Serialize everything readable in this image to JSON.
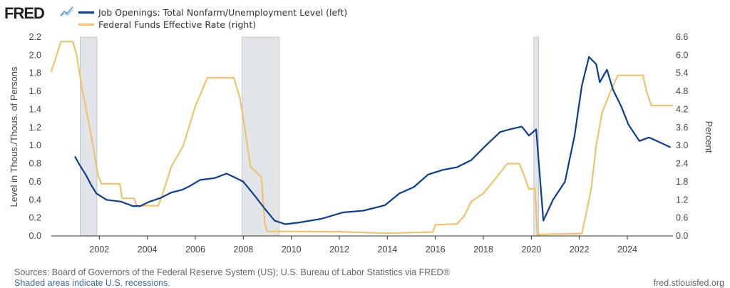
{
  "header": {
    "logo": "FRED",
    "logo_icon": "line-chart-icon"
  },
  "colors": {
    "job_openings": "#0b3d91",
    "fed_funds": "#efc36b",
    "recession": "#e1e5ea"
  },
  "footer": {
    "sources": "Sources: Board of Governors of the Federal Reserve System (US); U.S. Bureau of Labor Statistics via FRED®",
    "recessions_note": "Shaded areas indicate U.S. recessions.",
    "site": "fred.stlouisfed.org"
  },
  "chart_data": {
    "type": "line",
    "xlim": [
      2000.0,
      2025.9
    ],
    "x_ticks": [
      "2002",
      "2004",
      "2006",
      "2008",
      "2010",
      "2012",
      "2014",
      "2016",
      "2018",
      "2020",
      "2022",
      "2024"
    ],
    "ylabel_left": "Level in Thous./Thous. of Persons",
    "ylabel_right": "Percent",
    "ylim_left": [
      0,
      2.2
    ],
    "ylim_right": [
      0,
      6.6
    ],
    "y_ticks_left": [
      "0.0",
      "0.2",
      "0.4",
      "0.6",
      "0.8",
      "1.0",
      "1.2",
      "1.4",
      "1.6",
      "1.8",
      "2.0",
      "2.2"
    ],
    "y_ticks_right": [
      "0.0",
      "0.6",
      "1.2",
      "1.8",
      "2.4",
      "3.0",
      "3.6",
      "4.2",
      "4.8",
      "5.4",
      "6.0",
      "6.6"
    ],
    "recessions": [
      [
        2001.2,
        2001.9
      ],
      [
        2007.95,
        2009.5
      ],
      [
        2020.1,
        2020.3
      ]
    ],
    "series": [
      {
        "name": "Job Openings: Total Nonfarm/Unemployment Level (left)",
        "axis": "left",
        "x": [
          2000.98,
          2001.19,
          2001.43,
          2001.67,
          2001.88,
          2002.3,
          2002.9,
          2003.4,
          2003.7,
          2004.1,
          2004.55,
          2005.0,
          2005.45,
          2005.75,
          2006.2,
          2006.8,
          2007.3,
          2007.7,
          2008.0,
          2008.4,
          2008.9,
          2009.3,
          2009.75,
          2010.35,
          2011.25,
          2012.15,
          2013.0,
          2013.9,
          2014.5,
          2015.1,
          2015.7,
          2016.3,
          2016.9,
          2017.5,
          2018.1,
          2018.7,
          2019.1,
          2019.6,
          2019.9,
          2020.2,
          2020.5,
          2020.9,
          2021.4,
          2021.8,
          2022.1,
          2022.4,
          2022.7,
          2022.85,
          2023.15,
          2023.4,
          2023.75,
          2024.05,
          2024.5,
          2024.9,
          2025.4,
          2025.8
        ],
        "y": [
          0.88,
          0.78,
          0.68,
          0.56,
          0.47,
          0.4,
          0.38,
          0.33,
          0.33,
          0.38,
          0.42,
          0.48,
          0.51,
          0.55,
          0.62,
          0.64,
          0.69,
          0.64,
          0.6,
          0.47,
          0.3,
          0.17,
          0.13,
          0.15,
          0.19,
          0.26,
          0.28,
          0.34,
          0.47,
          0.54,
          0.68,
          0.73,
          0.76,
          0.84,
          1.0,
          1.15,
          1.18,
          1.21,
          1.11,
          1.18,
          0.17,
          0.4,
          0.6,
          1.11,
          1.66,
          1.98,
          1.9,
          1.7,
          1.84,
          1.62,
          1.43,
          1.23,
          1.05,
          1.09,
          1.03,
          0.98
        ]
      },
      {
        "name": "Federal Funds Effective Rate (right)",
        "axis": "right",
        "x": [
          2000.0,
          2000.4,
          2000.9,
          2001.05,
          2001.3,
          2001.6,
          2001.95,
          2002.1,
          2002.85,
          2002.95,
          2003.45,
          2003.55,
          2004.45,
          2004.6,
          2005.0,
          2005.5,
          2006.0,
          2006.5,
          2007.6,
          2007.85,
          2008.0,
          2008.3,
          2008.75,
          2008.9,
          2009.0,
          2010.0,
          2012.0,
          2014.0,
          2015.9,
          2016.0,
          2016.9,
          2017.2,
          2017.5,
          2018.0,
          2018.5,
          2019.0,
          2019.5,
          2019.7,
          2019.9,
          2020.15,
          2020.25,
          2022.1,
          2022.3,
          2022.5,
          2022.7,
          2022.95,
          2023.3,
          2023.6,
          2024.65,
          2024.8,
          2025.0,
          2025.9
        ],
        "y": [
          5.45,
          6.45,
          6.45,
          6.0,
          4.8,
          3.6,
          2.0,
          1.73,
          1.73,
          1.25,
          1.25,
          1.0,
          1.0,
          1.3,
          2.3,
          3.0,
          4.3,
          5.25,
          5.25,
          4.6,
          3.9,
          2.3,
          1.95,
          0.4,
          0.15,
          0.15,
          0.14,
          0.09,
          0.13,
          0.37,
          0.4,
          0.66,
          1.15,
          1.41,
          1.9,
          2.4,
          2.4,
          2.0,
          1.55,
          1.58,
          0.05,
          0.08,
          0.8,
          1.6,
          3.0,
          4.1,
          4.8,
          5.33,
          5.33,
          4.8,
          4.33,
          4.33
        ]
      }
    ]
  }
}
